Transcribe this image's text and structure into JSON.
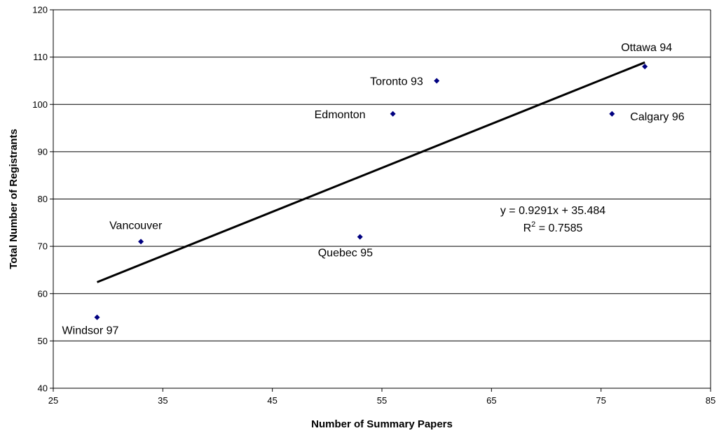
{
  "chart_data": {
    "type": "scatter",
    "xlabel": "Number of Summary Papers",
    "ylabel": "Total Number of Registrants",
    "xlim": [
      25,
      85
    ],
    "ylim": [
      40,
      120
    ],
    "xticks": [
      25,
      35,
      45,
      55,
      65,
      75,
      85
    ],
    "yticks": [
      40,
      50,
      60,
      70,
      80,
      90,
      100,
      110,
      120
    ],
    "grid": "horizontal",
    "legend": "none",
    "marker_color": "#000080",
    "points": [
      {
        "label": "Windsor 97",
        "x": 29,
        "y": 55
      },
      {
        "label": "Vancouver",
        "x": 33,
        "y": 71
      },
      {
        "label": "Quebec 95",
        "x": 53,
        "y": 72
      },
      {
        "label": "Edmonton",
        "x": 56,
        "y": 98
      },
      {
        "label": "Toronto 93",
        "x": 60,
        "y": 105
      },
      {
        "label": "Calgary 96",
        "x": 76,
        "y": 98
      },
      {
        "label": "Ottawa 94",
        "x": 79,
        "y": 108
      }
    ],
    "trendline": {
      "type": "linear",
      "slope": 0.9291,
      "intercept": 35.484,
      "x_range": [
        29,
        79
      ],
      "equation": "y = 0.9291x + 35.484",
      "r2_prefix": "R",
      "r2_sup": "2",
      "r2_suffix": " = 0.7585"
    }
  }
}
